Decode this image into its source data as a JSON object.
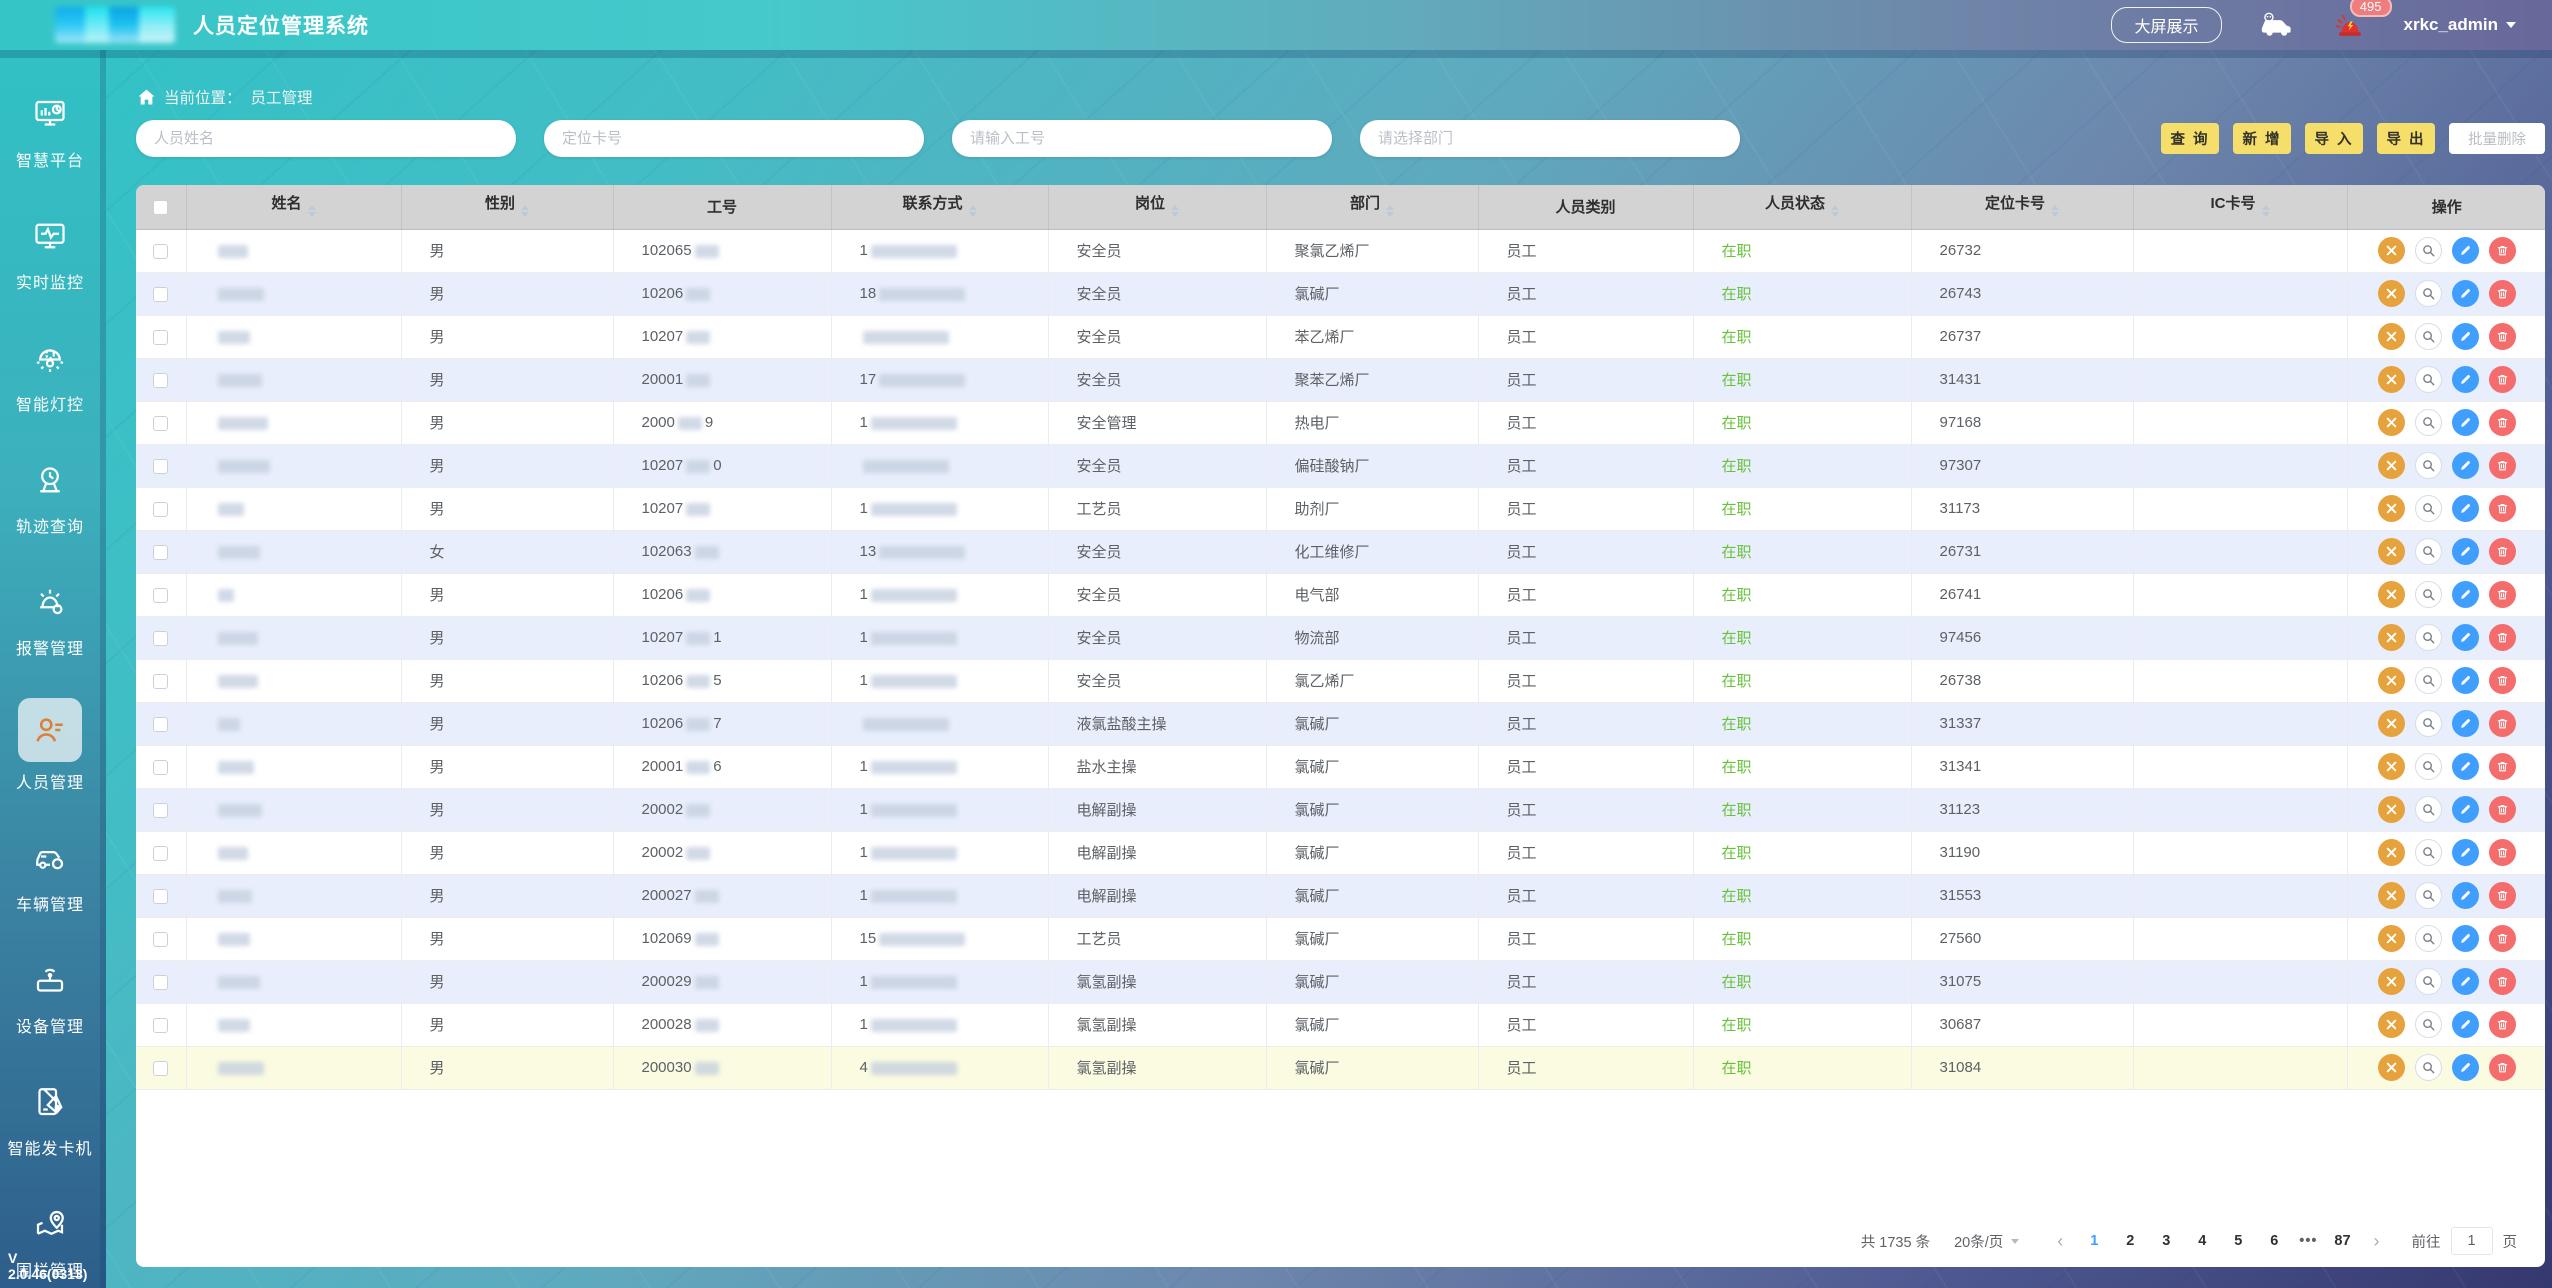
{
  "header": {
    "title": "人员定位管理系统",
    "big_screen_button": "大屏展示",
    "notification_count": "495",
    "username": "xrkc_admin"
  },
  "sidebar": {
    "items": [
      {
        "label": "智慧平台",
        "icon": "smart-platform-icon",
        "active": false
      },
      {
        "label": "实时监控",
        "icon": "realtime-monitor-icon",
        "active": false
      },
      {
        "label": "智能灯控",
        "icon": "smart-light-icon",
        "active": false
      },
      {
        "label": "轨迹查询",
        "icon": "track-query-icon",
        "active": false
      },
      {
        "label": "报警管理",
        "icon": "alarm-manage-icon",
        "active": false
      },
      {
        "label": "人员管理",
        "icon": "personnel-icon",
        "active": true
      },
      {
        "label": "车辆管理",
        "icon": "vehicle-manage-icon",
        "active": false
      },
      {
        "label": "设备管理",
        "icon": "device-manage-icon",
        "active": false
      },
      {
        "label": "智能发卡机",
        "icon": "card-dispenser-icon",
        "active": false
      },
      {
        "label": "围栏管理",
        "icon": "fence-manage-icon",
        "active": false
      }
    ],
    "version": "V 2.0.46(0313)"
  },
  "breadcrumb": {
    "prefix": "当前位置：",
    "current": "员工管理"
  },
  "filters": {
    "name_placeholder": "人员姓名",
    "card_placeholder": "定位卡号",
    "work_no_placeholder": "请输入工号",
    "dept_placeholder": "请选择部门"
  },
  "toolbar": {
    "query": "查 询",
    "add": "新 增",
    "import": "导 入",
    "export": "导 出",
    "batch_delete": "批量删除"
  },
  "table": {
    "columns": [
      {
        "label": "姓名",
        "sortable": true
      },
      {
        "label": "性别",
        "sortable": true
      },
      {
        "label": "工号",
        "sortable": false
      },
      {
        "label": "联系方式",
        "sortable": true
      },
      {
        "label": "岗位",
        "sortable": true
      },
      {
        "label": "部门",
        "sortable": true
      },
      {
        "label": "人员类别",
        "sortable": false
      },
      {
        "label": "人员状态",
        "sortable": true
      },
      {
        "label": "定位卡号",
        "sortable": true
      },
      {
        "label": "IC卡号",
        "sortable": true
      },
      {
        "label": "操作",
        "sortable": false
      }
    ],
    "rows": [
      {
        "name_w": 30,
        "gender": "男",
        "wn_pre": "102065",
        "wn_suf": "",
        "ph_pre": "1",
        "position": "安全员",
        "department": "聚氯乙烯厂",
        "category": "员工",
        "status": "在职",
        "card_no": "26732",
        "ic_card": "",
        "highlight": false
      },
      {
        "name_w": 46,
        "gender": "男",
        "wn_pre": "10206",
        "wn_suf": "",
        "ph_pre": "18",
        "position": "安全员",
        "department": "氯碱厂",
        "category": "员工",
        "status": "在职",
        "card_no": "26743",
        "ic_card": "",
        "highlight": false
      },
      {
        "name_w": 32,
        "gender": "男",
        "wn_pre": "10207",
        "wn_suf": "",
        "ph_pre": "",
        "position": "安全员",
        "department": "苯乙烯厂",
        "category": "员工",
        "status": "在职",
        "card_no": "26737",
        "ic_card": "",
        "highlight": false
      },
      {
        "name_w": 44,
        "gender": "男",
        "wn_pre": "20001",
        "wn_suf": "",
        "ph_pre": "17",
        "position": "安全员",
        "department": "聚苯乙烯厂",
        "category": "员工",
        "status": "在职",
        "card_no": "31431",
        "ic_card": "",
        "highlight": false
      },
      {
        "name_w": 50,
        "gender": "男",
        "wn_pre": "2000",
        "wn_suf": "9",
        "ph_pre": "1",
        "position": "安全管理",
        "department": "热电厂",
        "category": "员工",
        "status": "在职",
        "card_no": "97168",
        "ic_card": "",
        "highlight": false
      },
      {
        "name_w": 52,
        "gender": "男",
        "wn_pre": "10207",
        "wn_suf": "0",
        "ph_pre": "",
        "position": "安全员",
        "department": "偏硅酸钠厂",
        "category": "员工",
        "status": "在职",
        "card_no": "97307",
        "ic_card": "",
        "highlight": false
      },
      {
        "name_w": 26,
        "gender": "男",
        "wn_pre": "10207",
        "wn_suf": "",
        "ph_pre": "1",
        "position": "工艺员",
        "department": "助剂厂",
        "category": "员工",
        "status": "在职",
        "card_no": "31173",
        "ic_card": "",
        "highlight": false
      },
      {
        "name_w": 42,
        "gender": "女",
        "wn_pre": "102063",
        "wn_suf": "",
        "ph_pre": "13",
        "position": "安全员",
        "department": "化工维修厂",
        "category": "员工",
        "status": "在职",
        "card_no": "26731",
        "ic_card": "",
        "highlight": false
      },
      {
        "name_w": 16,
        "gender": "男",
        "wn_pre": "10206",
        "wn_suf": "",
        "ph_pre": "1",
        "position": "安全员",
        "department": "电气部",
        "category": "员工",
        "status": "在职",
        "card_no": "26741",
        "ic_card": "",
        "highlight": false
      },
      {
        "name_w": 40,
        "gender": "男",
        "wn_pre": "10207",
        "wn_suf": "1",
        "ph_pre": "1",
        "position": "安全员",
        "department": "物流部",
        "category": "员工",
        "status": "在职",
        "card_no": "97456",
        "ic_card": "",
        "highlight": false
      },
      {
        "name_w": 40,
        "gender": "男",
        "wn_pre": "10206",
        "wn_suf": "5",
        "ph_pre": "1",
        "position": "安全员",
        "department": "氯乙烯厂",
        "category": "员工",
        "status": "在职",
        "card_no": "26738",
        "ic_card": "",
        "highlight": false
      },
      {
        "name_w": 22,
        "gender": "男",
        "wn_pre": "10206",
        "wn_suf": "7",
        "ph_pre": "",
        "position": "液氯盐酸主操",
        "department": "氯碱厂",
        "category": "员工",
        "status": "在职",
        "card_no": "31337",
        "ic_card": "",
        "highlight": false
      },
      {
        "name_w": 36,
        "gender": "男",
        "wn_pre": "20001",
        "wn_suf": "6",
        "ph_pre": "1",
        "position": "盐水主操",
        "department": "氯碱厂",
        "category": "员工",
        "status": "在职",
        "card_no": "31341",
        "ic_card": "",
        "highlight": false
      },
      {
        "name_w": 44,
        "gender": "男",
        "wn_pre": "20002",
        "wn_suf": "",
        "ph_pre": "1",
        "position": "电解副操",
        "department": "氯碱厂",
        "category": "员工",
        "status": "在职",
        "card_no": "31123",
        "ic_card": "",
        "highlight": false
      },
      {
        "name_w": 30,
        "gender": "男",
        "wn_pre": "20002",
        "wn_suf": "",
        "ph_pre": "1",
        "position": "电解副操",
        "department": "氯碱厂",
        "category": "员工",
        "status": "在职",
        "card_no": "31190",
        "ic_card": "",
        "highlight": false
      },
      {
        "name_w": 34,
        "gender": "男",
        "wn_pre": "200027",
        "wn_suf": "",
        "ph_pre": "1",
        "position": "电解副操",
        "department": "氯碱厂",
        "category": "员工",
        "status": "在职",
        "card_no": "31553",
        "ic_card": "",
        "highlight": false
      },
      {
        "name_w": 32,
        "gender": "男",
        "wn_pre": "102069",
        "wn_suf": "",
        "ph_pre": "15",
        "position": "工艺员",
        "department": "氯碱厂",
        "category": "员工",
        "status": "在职",
        "card_no": "27560",
        "ic_card": "",
        "highlight": false
      },
      {
        "name_w": 42,
        "gender": "男",
        "wn_pre": "200029",
        "wn_suf": "",
        "ph_pre": "1",
        "position": "氯氢副操",
        "department": "氯碱厂",
        "category": "员工",
        "status": "在职",
        "card_no": "31075",
        "ic_card": "",
        "highlight": false
      },
      {
        "name_w": 32,
        "gender": "男",
        "wn_pre": "200028",
        "wn_suf": "",
        "ph_pre": "1",
        "position": "氯氢副操",
        "department": "氯碱厂",
        "category": "员工",
        "status": "在职",
        "card_no": "30687",
        "ic_card": "",
        "highlight": false
      },
      {
        "name_w": 46,
        "gender": "男",
        "wn_pre": "200030",
        "wn_suf": "",
        "ph_pre": "4",
        "position": "氯氢副操",
        "department": "氯碱厂",
        "category": "员工",
        "status": "在职",
        "card_no": "31084",
        "ic_card": "",
        "highlight": true
      }
    ]
  },
  "pagination": {
    "total_label": "共 1735 条",
    "page_size_label": "20条/页",
    "prev": "‹",
    "next": "›",
    "pages": [
      "1",
      "2",
      "3",
      "4",
      "5",
      "6",
      "•••",
      "87"
    ],
    "active_page": "1",
    "goto_prefix": "前往",
    "goto_value": "1",
    "goto_suffix": "页"
  },
  "colors": {
    "accent_teal": "#2fc0c3",
    "button_yellow": "#f5df6a",
    "active_blue": "#409eff",
    "status_green": "#67c23a",
    "danger_red": "#f56c6c",
    "op_orange": "#e6a23c"
  }
}
